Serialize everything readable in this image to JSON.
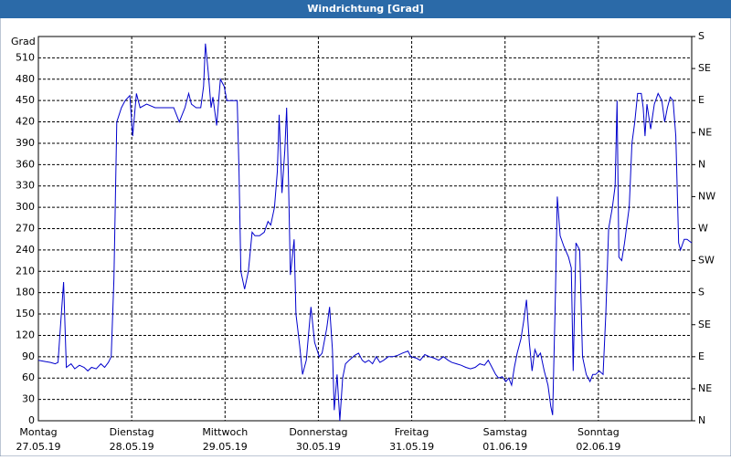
{
  "chart_data": {
    "type": "line",
    "title": "Windrichtung [Grad]",
    "y_label": "Grad",
    "xlim": [
      0,
      7
    ],
    "xticks": [
      {
        "value": 0,
        "label": [
          "Montag",
          "27.05.19"
        ]
      },
      {
        "value": 1,
        "label": [
          "Dienstag",
          "28.05.19"
        ]
      },
      {
        "value": 2,
        "label": [
          "Mittwoch",
          "29.05.19"
        ]
      },
      {
        "value": 3,
        "label": [
          "Donnerstag",
          "30.05.19"
        ]
      },
      {
        "value": 4,
        "label": [
          "Freitag",
          "31.05.19"
        ]
      },
      {
        "value": 5,
        "label": [
          "Samstag",
          "01.06.19"
        ]
      },
      {
        "value": 6,
        "label": [
          "Sonntag",
          "02.06.19"
        ]
      }
    ],
    "ylim": [
      0,
      540
    ],
    "yticks": [
      0,
      30,
      60,
      90,
      120,
      150,
      180,
      210,
      240,
      270,
      300,
      330,
      360,
      390,
      420,
      450,
      480,
      510
    ],
    "y2lim": [
      0,
      540
    ],
    "y2ticks": [
      {
        "value": 0,
        "label": "N"
      },
      {
        "value": 45,
        "label": "NE"
      },
      {
        "value": 90,
        "label": "E"
      },
      {
        "value": 135,
        "label": "SE"
      },
      {
        "value": 180,
        "label": "S"
      },
      {
        "value": 225,
        "label": "SW"
      },
      {
        "value": 270,
        "label": "W"
      },
      {
        "value": 315,
        "label": "NW"
      },
      {
        "value": 360,
        "label": "N"
      },
      {
        "value": 405,
        "label": "NE"
      },
      {
        "value": 450,
        "label": "E"
      },
      {
        "value": 495,
        "label": "SE"
      },
      {
        "value": 540,
        "label": "S"
      }
    ],
    "grid": true,
    "series": [
      {
        "color": "#0000cc",
        "x": [
          0,
          0.08,
          0.13,
          0.18,
          0.21,
          0.23,
          0.27,
          0.3,
          0.35,
          0.39,
          0.44,
          0.49,
          0.53,
          0.57,
          0.62,
          0.67,
          0.71,
          0.75,
          0.78,
          0.81,
          0.84,
          0.89,
          0.93,
          0.98,
          1.01,
          1.05,
          1.09,
          1.16,
          1.25,
          1.35,
          1.45,
          1.51,
          1.57,
          1.61,
          1.64,
          1.69,
          1.74,
          1.77,
          1.79,
          1.82,
          1.85,
          1.87,
          1.91,
          1.95,
          1.99,
          2.02,
          2.06,
          2.1,
          2.13,
          2.15,
          2.17,
          2.21,
          2.25,
          2.29,
          2.32,
          2.37,
          2.42,
          2.46,
          2.49,
          2.53,
          2.56,
          2.58,
          2.61,
          2.64,
          2.66,
          2.68,
          2.7,
          2.74,
          2.76,
          2.8,
          2.83,
          2.87,
          2.92,
          2.96,
          3.01,
          3.04,
          3.09,
          3.12,
          3.15,
          3.17,
          3.2,
          3.23,
          3.26,
          3.29,
          3.33,
          3.39,
          3.43,
          3.47,
          3.5,
          3.54,
          3.58,
          3.62,
          3.66,
          3.7,
          3.75,
          3.8,
          3.85,
          3.9,
          3.96,
          3.99,
          4.05,
          4.09,
          4.14,
          4.19,
          4.24,
          4.29,
          4.34,
          4.39,
          4.43,
          4.48,
          4.53,
          4.58,
          4.63,
          4.68,
          4.73,
          4.78,
          4.82,
          4.86,
          4.9,
          4.93,
          4.97,
          5.01,
          5.04,
          5.07,
          5.1,
          5.13,
          5.17,
          5.2,
          5.23,
          5.26,
          5.29,
          5.32,
          5.35,
          5.38,
          5.42,
          5.46,
          5.49,
          5.51,
          5.54,
          5.56,
          5.59,
          5.63,
          5.68,
          5.71,
          5.73,
          5.76,
          5.8,
          5.83,
          5.87,
          5.91,
          5.94,
          5.97,
          6.01,
          6.05,
          6.08,
          6.11,
          6.15,
          6.18,
          6.2,
          6.22,
          6.25,
          6.28,
          6.3,
          6.33,
          6.36,
          6.39,
          6.42,
          6.46,
          6.48,
          6.5,
          6.52,
          6.56,
          6.6,
          6.64,
          6.68,
          6.71,
          6.74,
          6.77,
          6.8,
          6.83,
          6.86,
          6.88,
          6.92,
          6.95,
          7.0
        ],
        "values": [
          85,
          83,
          82,
          80,
          82,
          120,
          195,
          75,
          80,
          73,
          78,
          75,
          70,
          75,
          73,
          80,
          75,
          82,
          90,
          200,
          420,
          440,
          450,
          457,
          400,
          460,
          440,
          445,
          440,
          440,
          440,
          420,
          440,
          460,
          445,
          440,
          440,
          470,
          530,
          490,
          440,
          455,
          415,
          480,
          470,
          450,
          450,
          450,
          450,
          350,
          210,
          185,
          210,
          265,
          260,
          260,
          265,
          280,
          275,
          300,
          350,
          430,
          320,
          380,
          440,
          340,
          205,
          255,
          150,
          105,
          65,
          85,
          160,
          110,
          90,
          95,
          130,
          160,
          100,
          15,
          65,
          0,
          60,
          80,
          85,
          92,
          95,
          85,
          82,
          85,
          80,
          90,
          82,
          85,
          90,
          90,
          92,
          95,
          98,
          90,
          88,
          85,
          93,
          90,
          88,
          85,
          90,
          85,
          82,
          80,
          78,
          75,
          73,
          75,
          80,
          78,
          85,
          75,
          65,
          60,
          62,
          55,
          60,
          50,
          75,
          95,
          115,
          140,
          170,
          110,
          70,
          100,
          90,
          95,
          70,
          50,
          20,
          8,
          180,
          315,
          260,
          245,
          230,
          215,
          70,
          250,
          240,
          90,
          65,
          55,
          65,
          65,
          70,
          65,
          150,
          270,
          300,
          330,
          450,
          230,
          225,
          250,
          270,
          300,
          390,
          420,
          460,
          460,
          440,
          400,
          445,
          410,
          445,
          460,
          450,
          420,
          440,
          455,
          450,
          400,
          250,
          240,
          255,
          255,
          250
        ]
      }
    ]
  }
}
